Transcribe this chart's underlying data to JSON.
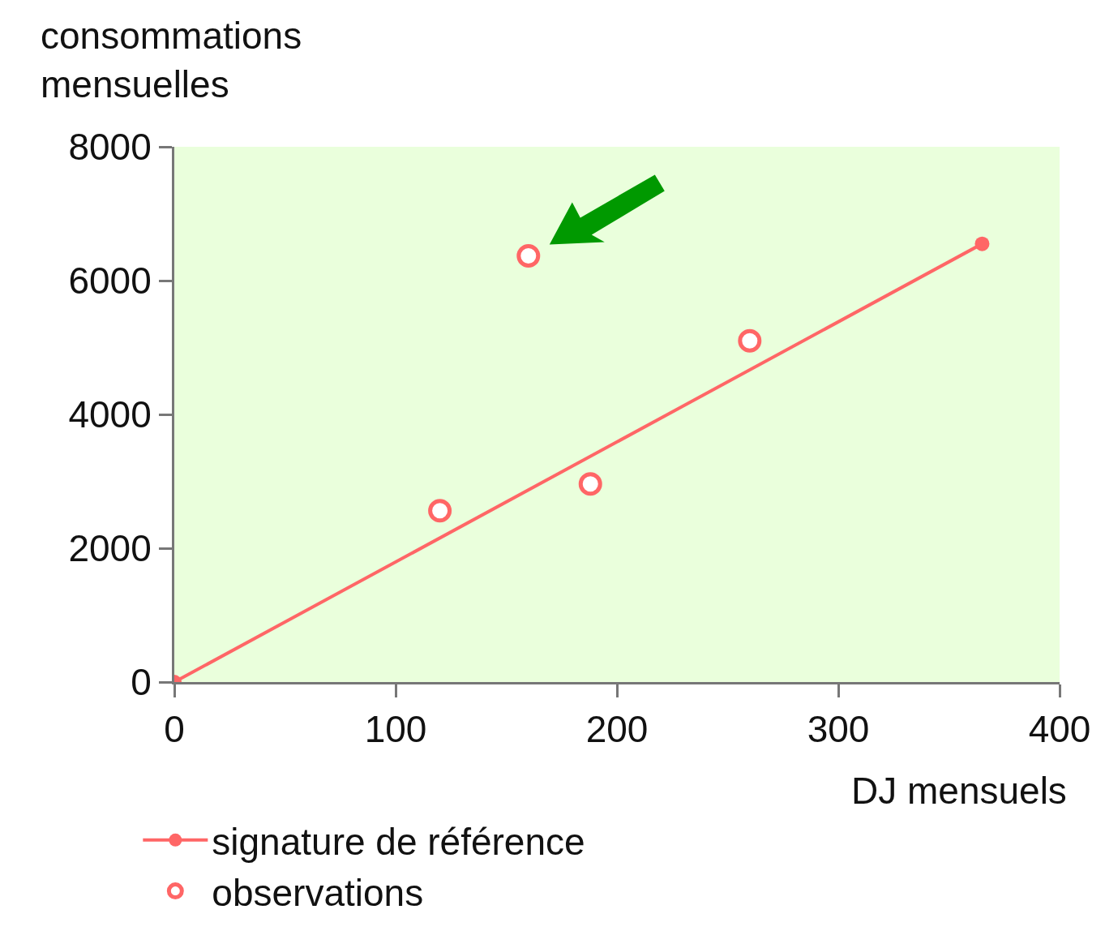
{
  "chart_data": {
    "type": "scatter",
    "xlabel": "DJ mensuels",
    "ylabel": "consommations mensuelles",
    "xlim": [
      0,
      400
    ],
    "xticks": [
      0,
      100,
      200,
      300,
      400
    ],
    "ylim": [
      0,
      8000
    ],
    "yticks": [
      0,
      2000,
      4000,
      6000,
      8000
    ],
    "grid": false,
    "legend": "bottom left",
    "series": [
      {
        "name": "signature de référence",
        "type": "line",
        "color": "#ff6666",
        "marker": "circle",
        "line_style": "solid",
        "x": [
          0,
          365
        ],
        "values": [
          0,
          6550
        ]
      },
      {
        "name": "observations",
        "type": "scatter",
        "color": "#ff6666",
        "marker": "circle",
        "x": [
          120,
          160,
          188,
          260
        ],
        "values": [
          2560,
          6370,
          2960,
          5100
        ]
      }
    ]
  }
}
